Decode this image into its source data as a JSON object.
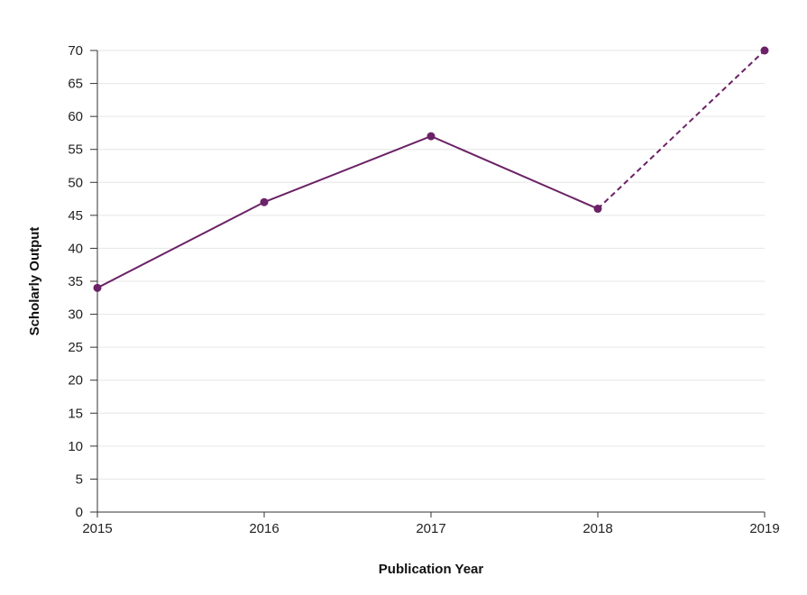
{
  "chart_data": {
    "type": "line",
    "title": "",
    "xlabel": "Publication Year",
    "ylabel": "Scholarly Output",
    "x": [
      2015,
      2016,
      2017,
      2018,
      2019
    ],
    "x_tick_labels": [
      "2015",
      "2016",
      "2017",
      "2018",
      "2019"
    ],
    "y_ticks": [
      0,
      5,
      10,
      15,
      20,
      25,
      30,
      35,
      40,
      45,
      50,
      55,
      60,
      65,
      70
    ],
    "ylim": [
      0,
      70
    ],
    "xlim": [
      2015,
      2019
    ],
    "grid": "horizontal",
    "legend": "none",
    "series": [
      {
        "values": [
          34,
          47,
          57,
          46,
          70
        ],
        "color": "#6b2266",
        "dashed_from_index": 3
      }
    ]
  }
}
